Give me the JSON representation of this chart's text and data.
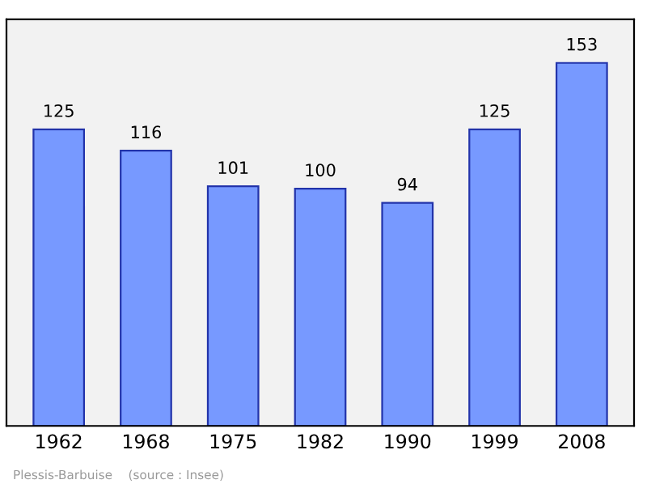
{
  "chart_data": {
    "type": "bar",
    "categories": [
      "1962",
      "1968",
      "1975",
      "1982",
      "1990",
      "1999",
      "2008"
    ],
    "values": [
      125,
      116,
      101,
      100,
      94,
      125,
      153
    ],
    "color": "#7799ff",
    "data_labels": true,
    "tick_labels": "x",
    "grid": false,
    "annotations": [
      "Plessis-Barbuise    (source : Insee)"
    ]
  }
}
